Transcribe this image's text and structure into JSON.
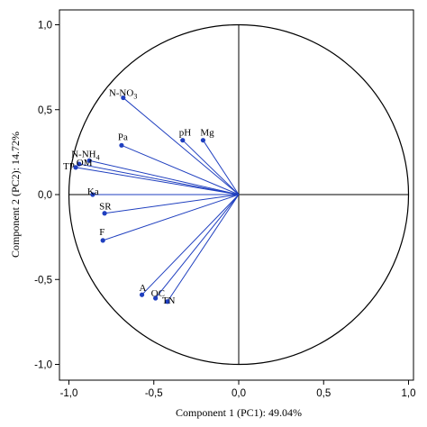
{
  "chart_data": {
    "type": "scatter",
    "xlabel": "Component 1 (PC1): 49.04%",
    "ylabel": "Component 2 (PC2): 14.72%",
    "xlim": [
      -1.0,
      1.0
    ],
    "ylim": [
      -1.0,
      1.0
    ],
    "xticks": [
      "-1,0",
      "-0,5",
      "0,0",
      "0,5",
      "1,0"
    ],
    "yticks": [
      "1,0",
      "0,5",
      "0,0",
      "-0,5",
      "-1,0"
    ],
    "xtick_values": [
      -1.0,
      -0.5,
      0.0,
      0.5,
      1.0
    ],
    "ytick_values": [
      1.0,
      0.5,
      0.0,
      -0.5,
      -1.0
    ],
    "grid": false,
    "unit_circle": true,
    "loading_vectors": true,
    "colors": {
      "vector": "#1f3fbf",
      "point": "#1f3fbf",
      "axis": "#000000"
    },
    "points": [
      {
        "label": "N-NO3",
        "label_main": "N-NO",
        "label_sub": "3",
        "x": -0.68,
        "y": 0.57
      },
      {
        "label": "pH",
        "label_main": "pH",
        "label_sub": "",
        "x": -0.33,
        "y": 0.32
      },
      {
        "label": "Mg",
        "label_main": "Mg",
        "label_sub": "",
        "x": -0.21,
        "y": 0.32
      },
      {
        "label": "Pa",
        "label_main": "Pa",
        "label_sub": "",
        "x": -0.69,
        "y": 0.29
      },
      {
        "label": "N-NH4",
        "label_main": "N-NH",
        "label_sub": "4",
        "x": -0.88,
        "y": 0.2
      },
      {
        "label": "TP",
        "label_main": "TP",
        "label_sub": "",
        "x": -0.96,
        "y": 0.16
      },
      {
        "label": "OM",
        "label_main": "OM",
        "label_sub": "",
        "x": -0.94,
        "y": 0.18
      },
      {
        "label": "Ka",
        "label_main": "Ka",
        "label_sub": "",
        "x": -0.86,
        "y": 0.0
      },
      {
        "label": "SR",
        "label_main": "SR",
        "label_sub": "",
        "x": -0.79,
        "y": -0.11
      },
      {
        "label": "F",
        "label_main": "F",
        "label_sub": "",
        "x": -0.8,
        "y": -0.27
      },
      {
        "label": "A",
        "label_main": "A",
        "label_sub": "",
        "x": -0.57,
        "y": -0.59
      },
      {
        "label": "OC",
        "label_main": "OC",
        "label_sub": "",
        "x": -0.49,
        "y": -0.61
      },
      {
        "label": "TN",
        "label_main": "TN",
        "label_sub": "",
        "x": -0.42,
        "y": -0.63
      }
    ]
  }
}
